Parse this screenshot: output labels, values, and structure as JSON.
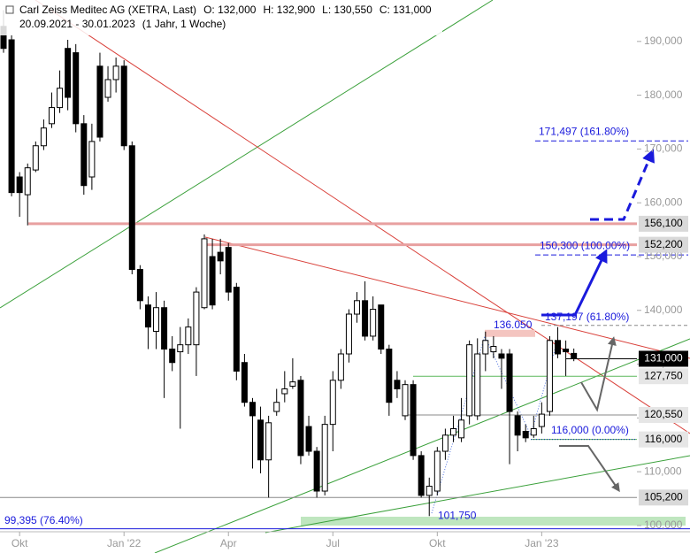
{
  "chart_data": {
    "type": "candlestick",
    "title": "Carl Zeiss Meditec AG (XETRA, Last)",
    "ohlc_text": [
      "O: 132,000",
      "H: 132,900",
      "L: 130,550",
      "C: 131,000"
    ],
    "subtitle": "20.09.2021 - 30.01.2023",
    "period": "(1 Jahr, 1 Woche)",
    "open": [
      192800,
      190300,
      164800,
      161500,
      166100,
      170600,
      174700,
      177700,
      188700,
      187900,
      174700,
      164800,
      185400,
      179600,
      182900,
      185400,
      170600,
      147600,
      141000,
      136100,
      140500,
      132800,
      132300,
      133600,
      133600,
      140500,
      150000,
      150800,
      151700,
      144300,
      130300,
      122900,
      119600,
      112200,
      121200,
      124500,
      125900,
      127000,
      118400,
      113800,
      106400,
      118800,
      127000,
      131900,
      139300,
      141800,
      135200,
      141000,
      132800,
      127000,
      120400,
      126200,
      113000,
      105600,
      106400,
      113800,
      116800,
      116300,
      120400,
      120400,
      131900,
      132300,
      131900,
      131900,
      120400,
      117500,
      116800,
      118400,
      121200,
      134400,
      132800,
      132000
    ],
    "high": [
      195800,
      191200,
      165700,
      167300,
      171400,
      175500,
      180500,
      184600,
      190300,
      189500,
      176300,
      174700,
      187900,
      185400,
      187000,
      186500,
      171400,
      148400,
      142600,
      143400,
      141800,
      135200,
      136900,
      138500,
      144300,
      154100,
      153300,
      153300,
      152500,
      145100,
      131900,
      123700,
      122100,
      120400,
      125400,
      128700,
      131100,
      127800,
      120400,
      114600,
      120400,
      128700,
      132800,
      140200,
      143400,
      145400,
      142600,
      141000,
      133600,
      128700,
      127000,
      127000,
      113800,
      108900,
      114600,
      118000,
      120400,
      123700,
      134400,
      134800,
      136050,
      135200,
      132800,
      132800,
      121200,
      118800,
      120400,
      122900,
      135200,
      136900,
      134400,
      132900
    ],
    "low": [
      187900,
      161200,
      157400,
      155800,
      165700,
      169800,
      173900,
      176700,
      177200,
      173100,
      161500,
      162400,
      171400,
      178800,
      180500,
      169800,
      146700,
      140200,
      132800,
      132800,
      123700,
      128700,
      118000,
      131900,
      127800,
      140200,
      140200,
      146700,
      141800,
      127000,
      122100,
      110600,
      109700,
      105200,
      120400,
      122900,
      125400,
      111400,
      113000,
      105200,
      105600,
      113800,
      125400,
      130300,
      137700,
      134400,
      134400,
      131900,
      120400,
      123700,
      119600,
      112200,
      105200,
      101750,
      105600,
      112200,
      115500,
      115500,
      118800,
      119600,
      128700,
      131100,
      125400,
      111400,
      113800,
      115500,
      116300,
      117100,
      120400,
      131100,
      127800,
      130550
    ],
    "close": [
      188700,
      161900,
      161900,
      166500,
      170600,
      173900,
      177700,
      181300,
      179600,
      174700,
      163200,
      171400,
      172200,
      182900,
      185400,
      170600,
      147600,
      141800,
      136900,
      140500,
      132800,
      130300,
      133600,
      136900,
      143400,
      153300,
      141000,
      149200,
      143400,
      128700,
      122900,
      120400,
      112200,
      119100,
      122900,
      125400,
      126700,
      113000,
      113800,
      106400,
      118800,
      127000,
      131900,
      139300,
      141800,
      135200,
      140200,
      132800,
      122900,
      125400,
      126200,
      113000,
      105600,
      107300,
      113800,
      116800,
      118000,
      119600,
      133600,
      131900,
      134400,
      133300,
      131100,
      121200,
      116800,
      116300,
      118000,
      120700,
      134400,
      131900,
      132300,
      131000
    ],
    "up_color": "#ffffff",
    "down_color": "#000000",
    "xticks": [
      {
        "value": 2,
        "label": "Okt"
      },
      {
        "value": 15,
        "label": "Jan '22"
      },
      {
        "value": 28,
        "label": "Apr"
      },
      {
        "value": 41,
        "label": "Jul"
      },
      {
        "value": 54,
        "label": "Okt"
      },
      {
        "value": 67,
        "label": "Jan '23"
      }
    ],
    "ylim": [
      99000,
      197700
    ],
    "yticks": [
      {
        "value": 100000,
        "label": "100,000"
      },
      {
        "value": 110000,
        "label": "110,000"
      },
      {
        "value": 120000,
        "label": "120,000"
      },
      {
        "value": 130000,
        "label": "130,000"
      },
      {
        "value": 140000,
        "label": "140,000"
      },
      {
        "value": 150000,
        "label": "150,000"
      },
      {
        "value": 160000,
        "label": "160,000"
      },
      {
        "value": 170000,
        "label": "170,000"
      },
      {
        "value": 180000,
        "label": "180,000"
      },
      {
        "value": 190000,
        "label": "190,000"
      }
    ],
    "levels": [
      {
        "value": 156100,
        "label": "156,100",
        "color": "#e8a0a0",
        "fill": "#d9d9d9",
        "text_color": "#000000"
      },
      {
        "value": 152200,
        "label": "152,200",
        "color": "#e8a0a0",
        "fill": "#d9d9d9",
        "text_color": "#000000"
      },
      {
        "value": 131000,
        "label": "131,000",
        "color": "#000000",
        "fill": "#000000",
        "text_color": "#ffffff"
      },
      {
        "value": 127750,
        "label": "127,750",
        "color": "#5cb85c",
        "fill": "#e6e6e6",
        "text_color": "#000000"
      },
      {
        "value": 120550,
        "label": "120,550",
        "color": "#888888",
        "fill": "#e6e6e6",
        "text_color": "#000000"
      },
      {
        "value": 116000,
        "label": "116,000",
        "color": "#5cb85c",
        "fill": "#e6e6e6",
        "text_color": "#000000"
      },
      {
        "value": 105200,
        "label": "105,200",
        "color": "#888888",
        "fill": "#d9d9d9",
        "text_color": "#000000"
      }
    ],
    "annotations": [
      {
        "value": 171497,
        "label": "171,497 (161.80%)"
      },
      {
        "value": 150300,
        "label": "150,300 (100.00%)"
      },
      {
        "value": 137197,
        "label": "137,197 (61.80%)"
      },
      {
        "value": 136050,
        "label": "136.050"
      },
      {
        "value": 116000,
        "label": "116,000 (0.00%)"
      },
      {
        "value": 101750,
        "label": "101,750"
      },
      {
        "value": 99395,
        "label": "99,395 (76.40%)"
      }
    ]
  }
}
